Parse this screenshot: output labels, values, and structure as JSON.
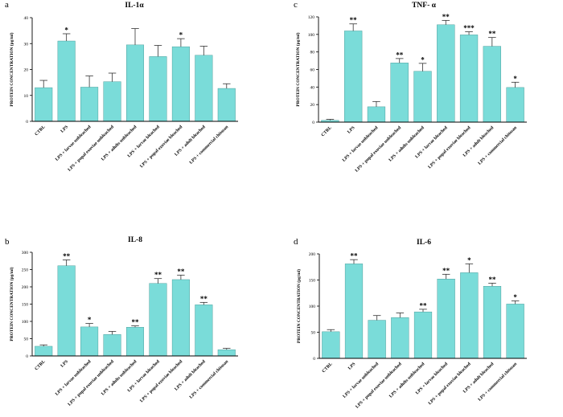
{
  "figure": {
    "colors": {
      "bar": "#7adcd9",
      "bar_edge": "#3a8f8c",
      "axis": "#000000"
    }
  },
  "chart_data": [
    {
      "type": "bar",
      "panel_letter": "a",
      "title": "IL-1α",
      "ylabel": "PROTEIN CONCENTRATION (pg/ml)",
      "xlabel": "",
      "ylim": [
        0,
        40
      ],
      "yticks": [
        "0",
        "10",
        "20",
        "30",
        "40"
      ],
      "categories": [
        "CTRL",
        "LPS",
        "LPS + larvae unbleached",
        "LPS + pupal exuviae unbleached",
        "LPS + adults unbleached",
        "LPS + larvae bleached",
        "LPS + pupal exuviae bleached",
        "LPS + adult bleached",
        "LPS + commercial chitosan"
      ],
      "values": [
        13,
        31,
        13.2,
        15.3,
        29.5,
        25,
        28.8,
        25.5,
        12.7
      ],
      "errors": [
        2.8,
        2.8,
        4.3,
        3.3,
        6.3,
        4.3,
        3.1,
        3.5,
        1.8
      ],
      "significance": [
        "",
        "*",
        "",
        "",
        "",
        "",
        "*",
        "",
        ""
      ]
    },
    {
      "type": "bar",
      "panel_letter": "c",
      "title": "TNF- α",
      "ylabel": "PROTEIN CONCENTRATION (pg/ml)",
      "xlabel": "",
      "ylim": [
        0,
        120
      ],
      "yticks": [
        "0",
        "20",
        "40",
        "60",
        "80",
        "100",
        "120"
      ],
      "categories": [
        "CTRL",
        "LPS",
        "LPS + larvae unbleached",
        "LPS + pupal exuviae unbleached",
        "LPS + adults unbleached",
        "LPS + larvae bleached",
        "LPS + pupal exuviae bleached",
        "LPS + adult bleached",
        "LPS + commercial chitosan"
      ],
      "values": [
        2,
        104,
        17.5,
        67.5,
        58,
        111,
        99.5,
        86.5,
        39.5
      ],
      "errors": [
        1.2,
        8,
        6,
        5,
        9,
        5,
        3.5,
        10,
        6
      ],
      "significance": [
        "",
        "**",
        "",
        "**",
        "*",
        "**",
        "***",
        "**",
        "*"
      ]
    },
    {
      "type": "bar",
      "panel_letter": "b",
      "title": "IL-8",
      "ylabel": "PROTEIN CONCENTRATION (pg/ml)",
      "xlabel": "",
      "ylim": [
        0,
        300
      ],
      "yticks": [
        "0",
        "50",
        "100",
        "150",
        "200",
        "250",
        "300"
      ],
      "categories": [
        "CTRL",
        "LPS",
        "LPS + larvae unbleached",
        "LPS + pupal exuviae unbleached",
        "LPS + adults unbleached",
        "LPS + larvae bleached",
        "LPS + pupal exuviae bleached",
        "LPS + adult bleached",
        "LPS + commercial chitosan"
      ],
      "values": [
        28,
        261,
        84,
        62,
        83,
        210,
        221,
        148,
        18
      ],
      "errors": [
        4,
        17,
        10,
        9,
        4,
        14,
        13,
        7,
        4
      ],
      "significance": [
        "",
        "**",
        "*",
        "",
        "**",
        "**",
        "**",
        "**",
        ""
      ]
    },
    {
      "type": "bar",
      "panel_letter": "d",
      "title": "IL-6",
      "ylabel": "PROTEIN CONCENTRATION (pg/ml)",
      "xlabel": "",
      "ylim": [
        0,
        200
      ],
      "yticks": [
        "0",
        "50",
        "100",
        "150",
        "200"
      ],
      "categories": [
        "CTRL",
        "LPS",
        "LPS + larvae unbleached",
        "LPS + pupal exuviae unbleached",
        "LPS + adults unbleached",
        "LPS + larvae bleached",
        "LPS + pupal exuviae bleached",
        "LPS + adult bleached",
        "LPS + commercial chitosan"
      ],
      "values": [
        51,
        181,
        73,
        78,
        89,
        152,
        164,
        138,
        104
      ],
      "errors": [
        4,
        8,
        9,
        9,
        5,
        9,
        17,
        6,
        6
      ],
      "significance": [
        "",
        "**",
        "",
        "",
        "**",
        "**",
        "*",
        "**",
        "*"
      ]
    }
  ]
}
